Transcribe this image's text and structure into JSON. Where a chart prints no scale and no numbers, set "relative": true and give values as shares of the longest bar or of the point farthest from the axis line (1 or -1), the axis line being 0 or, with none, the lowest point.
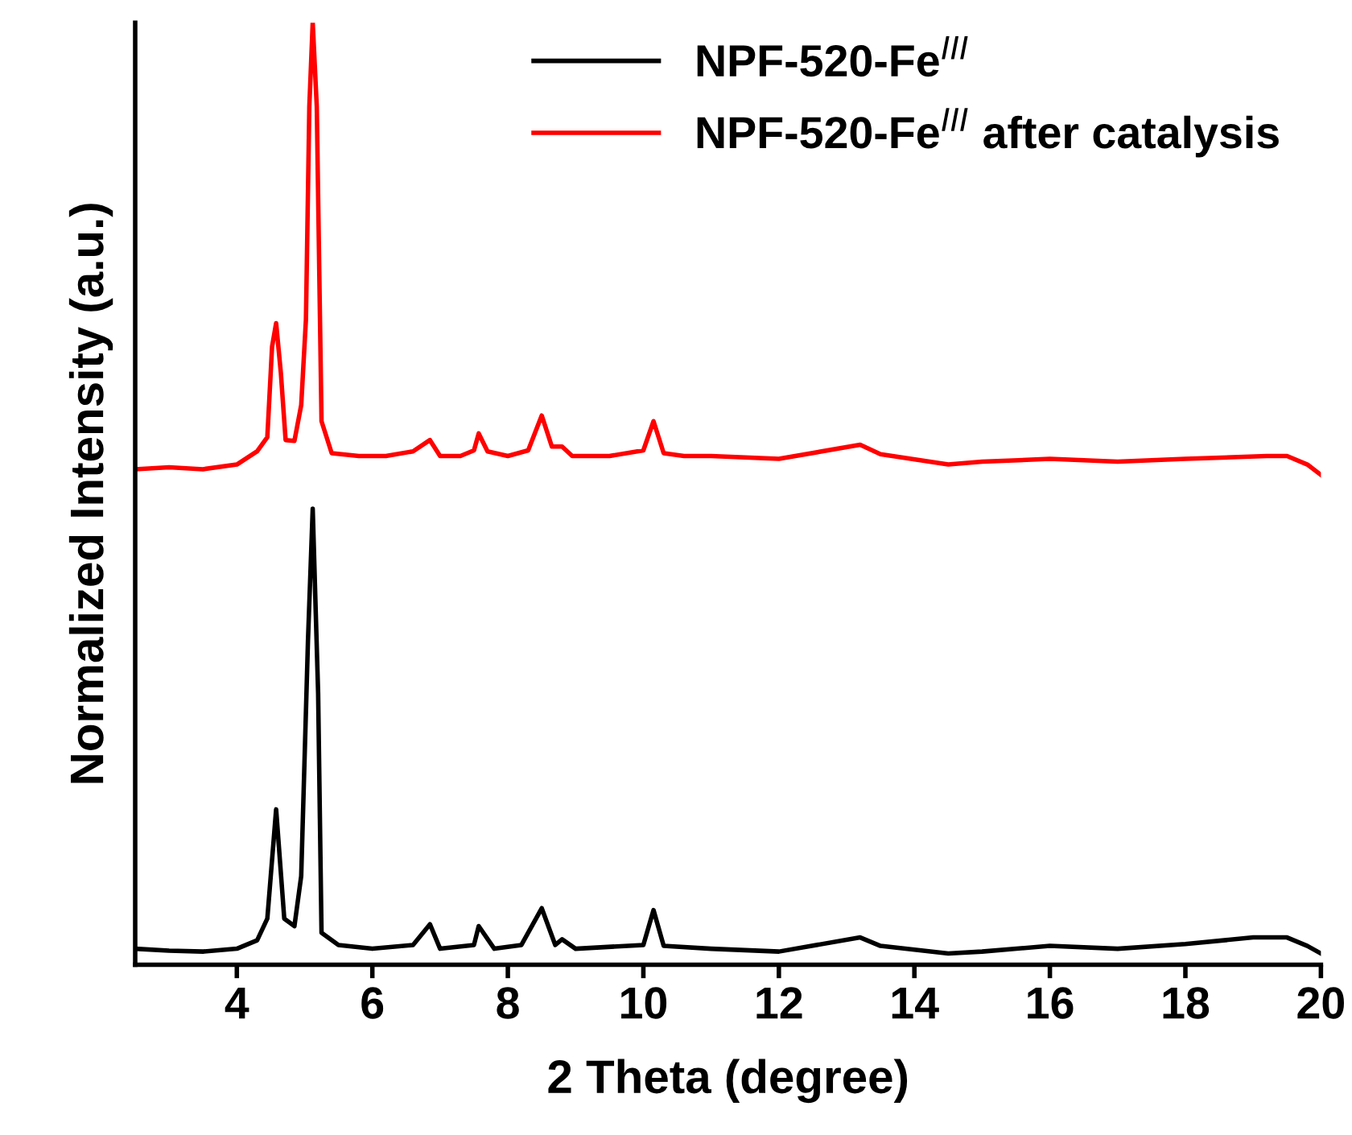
{
  "chart_data": {
    "type": "line",
    "relative": true,
    "xlabel": "2 Theta (degree)",
    "ylabel": "Normalized Intensity (a.u.)",
    "xlim": [
      2.5,
      20
    ],
    "xticks": [
      4,
      6,
      8,
      10,
      12,
      14,
      16,
      18,
      20
    ],
    "legend": "top right",
    "grid": false,
    "marker": "none",
    "line_style": "solid",
    "series": [
      {
        "name": "NPF-520-Fe$^{III}$",
        "color": "#000000",
        "x": [
          2.5,
          3.0,
          3.5,
          4.0,
          4.3,
          4.45,
          4.58,
          4.7,
          4.85,
          4.95,
          5.05,
          5.12,
          5.2,
          5.25,
          5.5,
          6.0,
          6.6,
          6.85,
          7.0,
          7.5,
          7.57,
          7.8,
          8.2,
          8.5,
          8.7,
          8.8,
          9.0,
          10.0,
          10.15,
          10.3,
          11.0,
          12.0,
          13.2,
          13.5,
          14.5,
          15.0,
          16.0,
          17.0,
          18.0,
          19.0,
          19.5,
          19.8,
          20.0
        ],
        "values": [
          0.017,
          0.015,
          0.014,
          0.017,
          0.026,
          0.049,
          0.165,
          0.049,
          0.041,
          0.094,
          0.344,
          0.484,
          0.288,
          0.034,
          0.021,
          0.017,
          0.021,
          0.043,
          0.017,
          0.021,
          0.041,
          0.017,
          0.021,
          0.06,
          0.021,
          0.027,
          0.017,
          0.021,
          0.058,
          0.02,
          0.017,
          0.014,
          0.029,
          0.02,
          0.012,
          0.014,
          0.02,
          0.017,
          0.022,
          0.029,
          0.029,
          0.02,
          0.012
        ]
      },
      {
        "name": "NPF-520-Fe$^{III}$ after catalysis",
        "color": "#ff0000",
        "x": [
          2.5,
          3.0,
          3.5,
          4.0,
          4.3,
          4.45,
          4.52,
          4.58,
          4.65,
          4.72,
          4.85,
          4.95,
          5.02,
          5.07,
          5.12,
          5.18,
          5.25,
          5.4,
          5.8,
          6.2,
          6.6,
          6.85,
          7.0,
          7.3,
          7.5,
          7.57,
          7.7,
          8.0,
          8.3,
          8.5,
          8.65,
          8.8,
          8.95,
          9.5,
          10.0,
          10.15,
          10.3,
          10.6,
          11.0,
          12.0,
          13.2,
          13.5,
          14.5,
          15.0,
          16.0,
          17.0,
          18.0,
          19.2,
          19.5,
          19.8,
          20.0
        ],
        "values": [
          0.526,
          0.528,
          0.526,
          0.531,
          0.545,
          0.56,
          0.656,
          0.681,
          0.628,
          0.557,
          0.556,
          0.594,
          0.685,
          0.911,
          1.0,
          0.911,
          0.577,
          0.543,
          0.54,
          0.54,
          0.545,
          0.557,
          0.54,
          0.54,
          0.546,
          0.564,
          0.545,
          0.54,
          0.546,
          0.583,
          0.55,
          0.55,
          0.54,
          0.54,
          0.546,
          0.577,
          0.543,
          0.54,
          0.54,
          0.537,
          0.552,
          0.542,
          0.531,
          0.534,
          0.537,
          0.534,
          0.537,
          0.54,
          0.54,
          0.531,
          0.52
        ]
      }
    ]
  }
}
